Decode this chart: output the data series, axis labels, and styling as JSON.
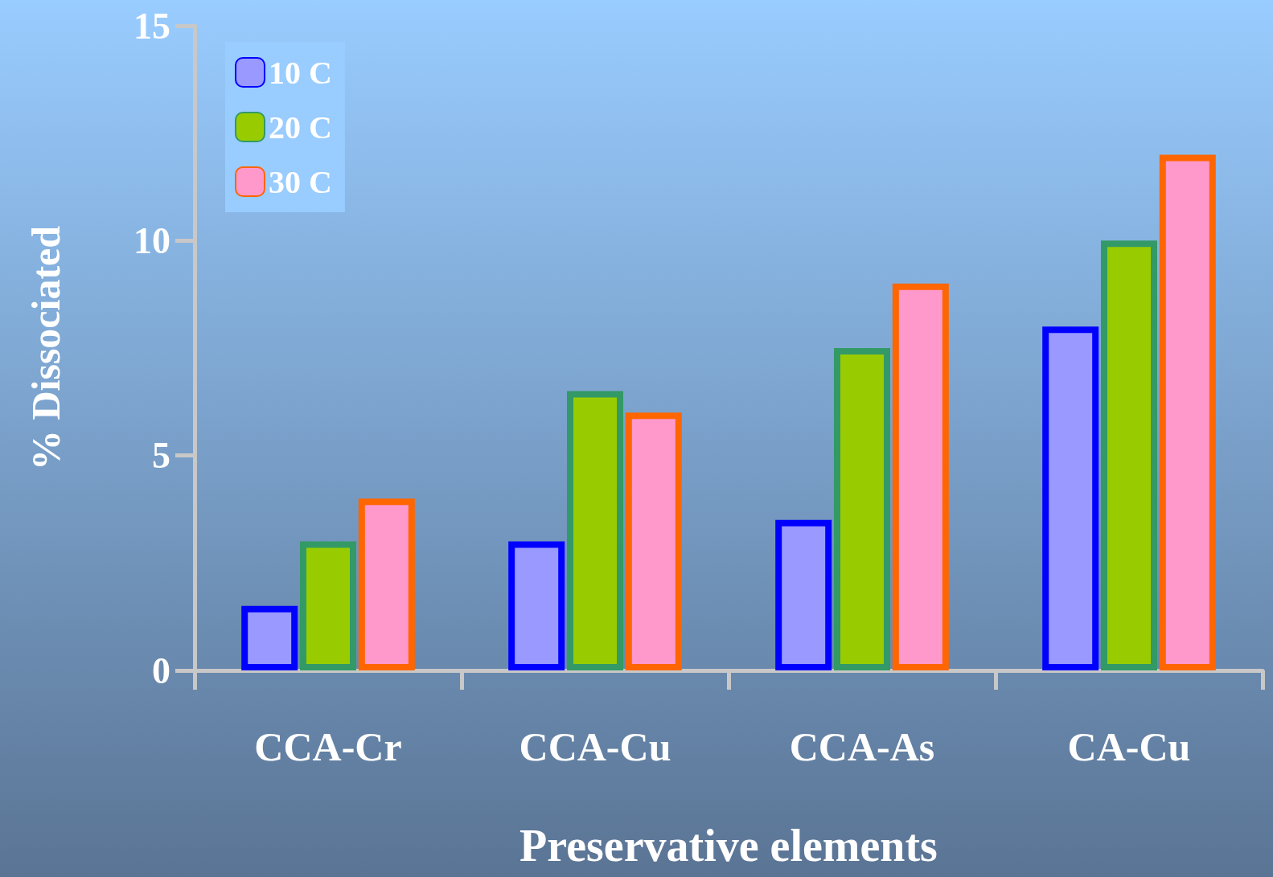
{
  "chart_data": {
    "type": "bar",
    "xlabel": "Preservative elements",
    "ylabel": "% Dissociated",
    "categories": [
      "CCA-Cr",
      "CCA-Cu",
      "CCA-As",
      "CA-Cu"
    ],
    "series": [
      {
        "name": "10 C",
        "color": "#9999ff",
        "values": [
          1.5,
          3.0,
          3.5,
          8.0
        ]
      },
      {
        "name": "20 C",
        "color": "#99cc00",
        "values": [
          3.0,
          6.5,
          7.5,
          10.0
        ]
      },
      {
        "name": "30 C",
        "color": "#ff99cc",
        "values": [
          4.0,
          6.0,
          9.0,
          12.0
        ]
      }
    ],
    "ylim": [
      0,
      15
    ],
    "yticks": [
      0,
      5,
      10,
      15
    ],
    "grid": false,
    "legend": "top left"
  }
}
